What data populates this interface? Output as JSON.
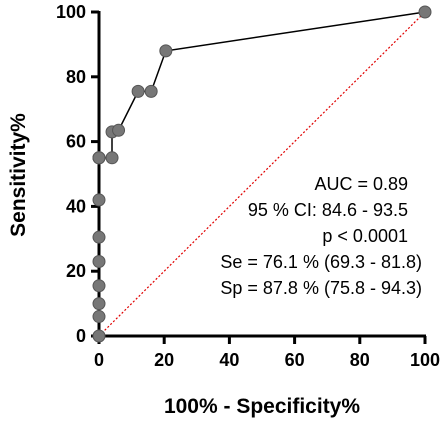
{
  "chart_data": {
    "type": "line",
    "xlabel": "100% - Specificity%",
    "ylabel": "Sensitivity%",
    "xlim": [
      0,
      100
    ],
    "ylim": [
      0,
      100
    ],
    "xticks": [
      0,
      20,
      40,
      60,
      80,
      100
    ],
    "yticks": [
      0,
      20,
      40,
      60,
      80,
      100
    ],
    "grid": false,
    "series": [
      {
        "line_color": "#000000",
        "marker_color": "#777777",
        "x": [
          0,
          0,
          0,
          0,
          0,
          0,
          0,
          0,
          0,
          0,
          4,
          4,
          6,
          12,
          16,
          20.5,
          100
        ],
        "y": [
          0,
          6,
          10,
          15.5,
          23,
          30.5,
          42,
          55,
          55,
          55,
          55,
          63,
          63.5,
          75.5,
          75.5,
          88,
          100
        ]
      }
    ],
    "reference_line": {
      "x": [
        0,
        100
      ],
      "y": [
        0,
        100
      ],
      "color": "#e00000",
      "style": "dotted"
    },
    "annotations": [
      "AUC = 0.89",
      "95 % CI: 84.6 - 93.5",
      "p < 0.0001",
      "Se = 76.1 % (69.3 - 81.8)",
      "Sp = 87.8 % (75.8 - 94.3)"
    ]
  }
}
